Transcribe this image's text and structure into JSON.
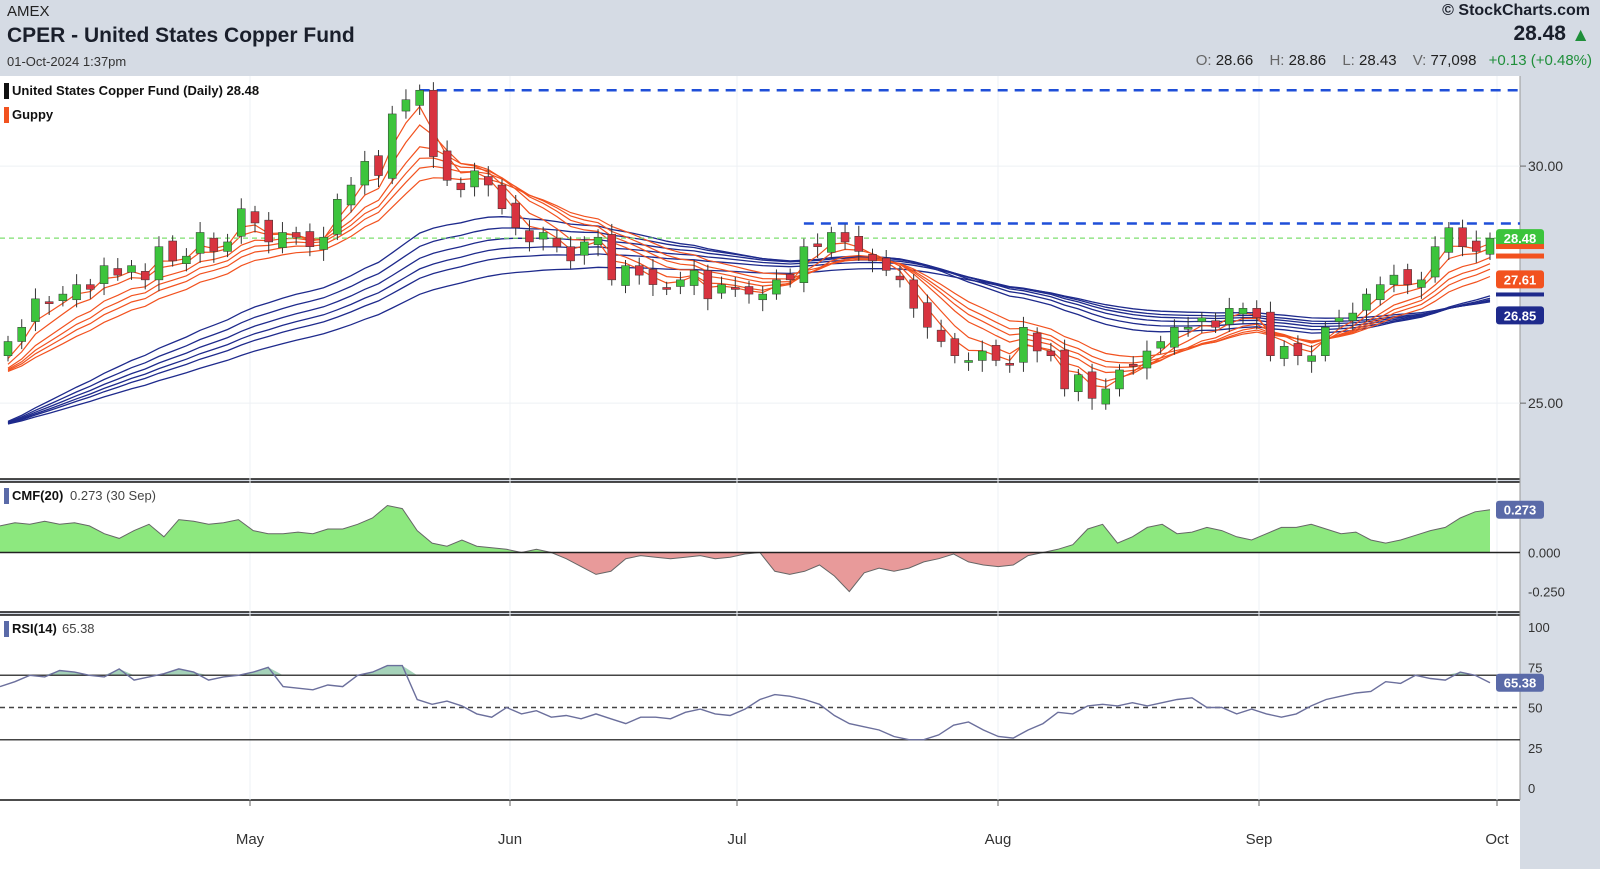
{
  "header": {
    "exchange": "AMEX",
    "title": "CPER - United States Copper Fund",
    "datetime": "01-Oct-2024 1:37pm",
    "brand": "StockCharts.com",
    "last_price": "28.48",
    "open_label": "O:",
    "open": "28.66",
    "high_label": "H:",
    "high": "28.86",
    "low_label": "L:",
    "low": "28.43",
    "volume_label": "V:",
    "volume": "77,098",
    "change": "+0.13 (+0.48%)"
  },
  "colors": {
    "up_candle": "#3cc43c",
    "down_candle": "#d8333f",
    "guppy_short": "#f2521f",
    "guppy_long": "#1e2a8c",
    "resistance": "#1f4fd8",
    "cmf_positive": "#8de87f",
    "cmf_negative": "#e89a9a",
    "rsi_line": "#6b6f9c"
  },
  "chart_data": [
    {
      "type": "candlestick",
      "legend": [
        "United States Copper Fund (Daily) 28.48",
        "Guppy"
      ],
      "x_labels": [
        "May",
        "Jun",
        "Jul",
        "Aug",
        "Sep",
        "Oct"
      ],
      "y_ticks": [
        "30.00",
        "25.00"
      ],
      "y_range": [
        23.4,
        31.9
      ],
      "price_badges": [
        "28.48",
        "27.61",
        "26.85"
      ],
      "resistance_levels": [
        31.6,
        28.79
      ],
      "last_close_line": 28.48,
      "closes": [
        26.3,
        26.6,
        27.2,
        27.1,
        27.3,
        27.5,
        27.4,
        27.9,
        27.7,
        27.9,
        27.6,
        28.3,
        28.0,
        28.1,
        28.6,
        28.2,
        28.4,
        29.1,
        28.8,
        28.4,
        28.6,
        28.5,
        28.3,
        28.5,
        29.3,
        29.6,
        30.1,
        29.8,
        31.1,
        31.4,
        31.6,
        30.2,
        29.7,
        29.5,
        29.9,
        29.6,
        29.1,
        28.7,
        28.4,
        28.6,
        28.3,
        28.0,
        28.4,
        28.5,
        27.6,
        27.9,
        27.7,
        27.5,
        27.4,
        27.6,
        27.8,
        27.2,
        27.5,
        27.4,
        27.3,
        27.3,
        27.6,
        27.6,
        28.3,
        28.3,
        28.6,
        28.4,
        28.2,
        28.0,
        27.8,
        27.6,
        27.0,
        26.6,
        26.3,
        26.0,
        25.9,
        26.1,
        25.9,
        25.8,
        26.6,
        26.1,
        26.0,
        25.3,
        25.6,
        25.1,
        25.3,
        25.7,
        25.8,
        26.1,
        26.3,
        26.6,
        26.6,
        26.8,
        26.6,
        27.0,
        27.0,
        26.8,
        26.0,
        26.2,
        26.0,
        26.0,
        26.6,
        26.8,
        26.9,
        27.3,
        27.5,
        27.7,
        27.5,
        27.6,
        28.3,
        28.7,
        28.3,
        28.2,
        28.48
      ],
      "guppy_short_last": 28.3,
      "guppy_long_last": 26.85
    },
    {
      "type": "area",
      "label": "CMF(20)",
      "value": "0.273",
      "date": "(30 Sep)",
      "y_ticks": [
        "0.000",
        "-0.250"
      ],
      "badge": "0.273",
      "y_range": [
        -0.38,
        0.45
      ],
      "values": [
        0.17,
        0.19,
        0.18,
        0.2,
        0.18,
        0.19,
        0.17,
        0.12,
        0.09,
        0.14,
        0.18,
        0.1,
        0.21,
        0.2,
        0.18,
        0.19,
        0.21,
        0.14,
        0.12,
        0.12,
        0.13,
        0.12,
        0.15,
        0.15,
        0.18,
        0.22,
        0.3,
        0.28,
        0.14,
        0.06,
        0.04,
        0.08,
        0.04,
        0.03,
        0.02,
        0.0,
        0.02,
        0.0,
        -0.04,
        -0.09,
        -0.14,
        -0.12,
        -0.04,
        -0.02,
        -0.03,
        -0.04,
        -0.03,
        -0.02,
        -0.04,
        -0.03,
        -0.01,
        0.0,
        -0.12,
        -0.14,
        -0.12,
        -0.08,
        -0.15,
        -0.25,
        -0.13,
        -0.1,
        -0.12,
        -0.1,
        -0.06,
        -0.04,
        -0.01,
        -0.06,
        -0.08,
        -0.09,
        -0.08,
        -0.02,
        0.0,
        0.02,
        0.05,
        0.15,
        0.18,
        0.06,
        0.1,
        0.16,
        0.18,
        0.12,
        0.13,
        0.16,
        0.14,
        0.1,
        0.08,
        0.12,
        0.16,
        0.16,
        0.18,
        0.15,
        0.12,
        0.13,
        0.08,
        0.06,
        0.08,
        0.11,
        0.14,
        0.16,
        0.22,
        0.26,
        0.273
      ]
    },
    {
      "type": "line",
      "label": "RSI(14)",
      "value": "65.38",
      "y_ticks": [
        "100",
        "75",
        "50",
        "25",
        "0"
      ],
      "badge": "65.38",
      "reference_lines": [
        70,
        50,
        30
      ],
      "y_range": [
        0,
        100
      ],
      "values": [
        63,
        66,
        70,
        69,
        73,
        72,
        70,
        69,
        74,
        67,
        69,
        71,
        74,
        72,
        67,
        69,
        70,
        72,
        75,
        63,
        62,
        61,
        64,
        63,
        70,
        72,
        76,
        76,
        55,
        52,
        54,
        51,
        46,
        44,
        50,
        46,
        48,
        44,
        45,
        43,
        46,
        43,
        40,
        44,
        44,
        43,
        47,
        49,
        46,
        45,
        49,
        55,
        58,
        57,
        55,
        52,
        45,
        40,
        38,
        36,
        32,
        30,
        30,
        33,
        39,
        41,
        36,
        32,
        31,
        36,
        40,
        47,
        46,
        51,
        52,
        51,
        53,
        51,
        53,
        55,
        56,
        50,
        50,
        46,
        49,
        46,
        44,
        46,
        51,
        55,
        57,
        59,
        60,
        66,
        65,
        70,
        68,
        67,
        72,
        70,
        65.38
      ]
    }
  ]
}
